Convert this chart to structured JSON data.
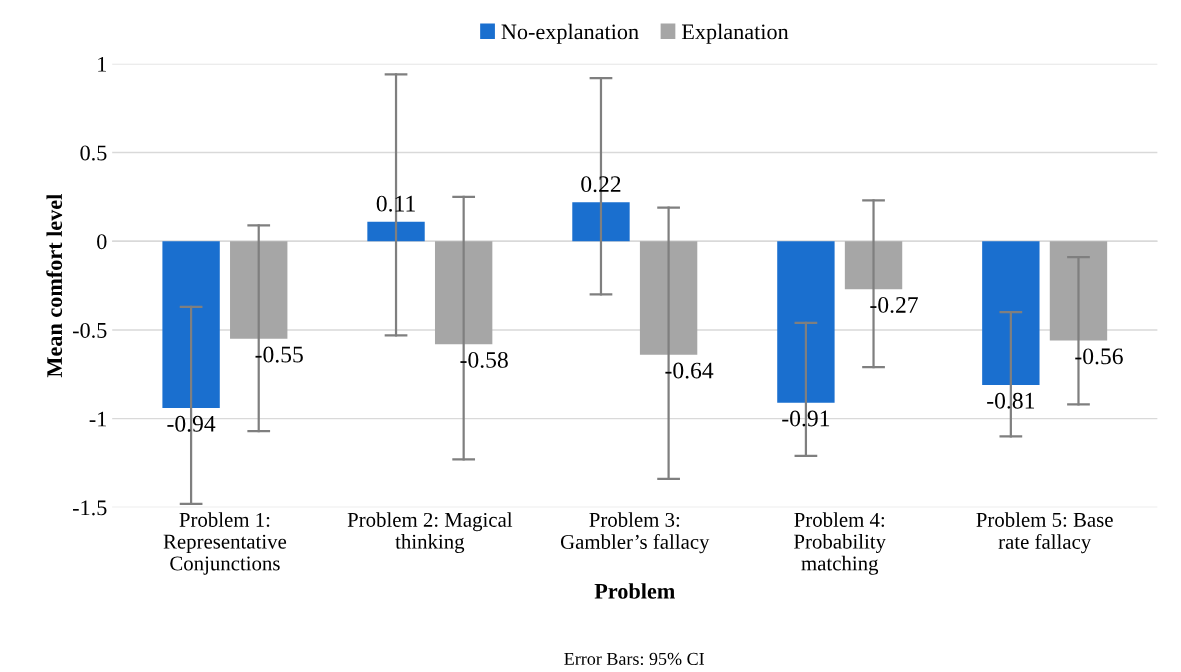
{
  "chart_data": {
    "type": "bar",
    "xlabel": "Problem",
    "ylabel": "Mean comfort level",
    "annotations": [
      "Error Bars: 95% CI"
    ],
    "categories": [
      "Problem 1:\nRepresentative\nConjunctions",
      "Problem 2: Magical\nthinking",
      "Problem 3:\nGambler’s fallacy",
      "Problem 4:\nProbability\nmatching",
      "Problem 5: Base\nrate fallacy"
    ],
    "series": [
      {
        "name": "No-explanation",
        "color": "#1a6fcf",
        "values": [
          -0.94,
          0.11,
          0.22,
          -0.91,
          -0.81
        ],
        "errors": [
          [
            -1.48,
            -0.37
          ],
          [
            -0.53,
            0.94
          ],
          [
            -0.3,
            0.92
          ],
          [
            -1.21,
            -0.46
          ],
          [
            -1.1,
            -0.4
          ]
        ]
      },
      {
        "name": "Explanation",
        "color": "#a6a6a6",
        "values": [
          -0.55,
          -0.58,
          -0.64,
          -0.27,
          -0.56
        ],
        "errors": [
          [
            -1.07,
            0.09
          ],
          [
            -1.23,
            0.25
          ],
          [
            -1.34,
            0.19
          ],
          [
            -0.71,
            0.23
          ],
          [
            -0.92,
            -0.09
          ]
        ]
      }
    ],
    "data_labels": true,
    "ylim": [
      -1.5,
      1
    ],
    "yticks": [
      -1.5,
      -1,
      -0.5,
      0,
      0.5,
      1
    ],
    "grid": "y",
    "legend": "top"
  }
}
